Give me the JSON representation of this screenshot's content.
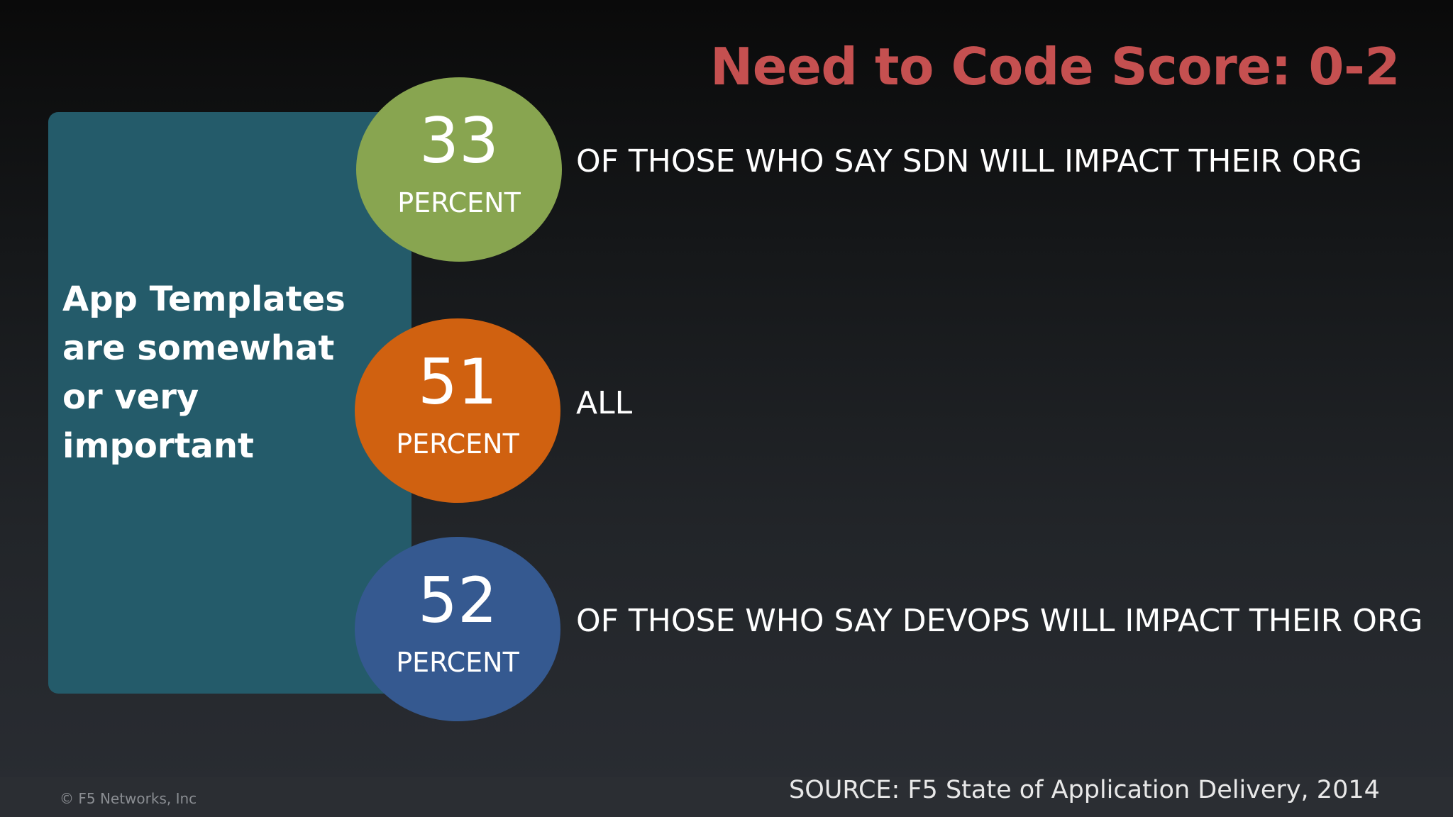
{
  "slide": {
    "title": "Need to Code Score: 0-2",
    "panel_text": "App Templates are somewhat or very important",
    "stats": [
      {
        "number": "33",
        "unit": "PERCENT",
        "label": "OF THOSE WHO SAY SDN WILL IMPACT THEIR ORG",
        "color": "#88a550"
      },
      {
        "number": "51",
        "unit": "PERCENT",
        "label": "ALL",
        "color": "#d06110"
      },
      {
        "number": "52",
        "unit": "PERCENT",
        "label": "OF THOSE WHO SAY DEVOPS WILL IMPACT THEIR ORG",
        "color": "#355990"
      }
    ],
    "source": "SOURCE: F5 State of Application Delivery, 2014",
    "copyright": "© F5 Networks, Inc"
  },
  "colors": {
    "title": "#c55050",
    "panel": "#245b6a"
  }
}
